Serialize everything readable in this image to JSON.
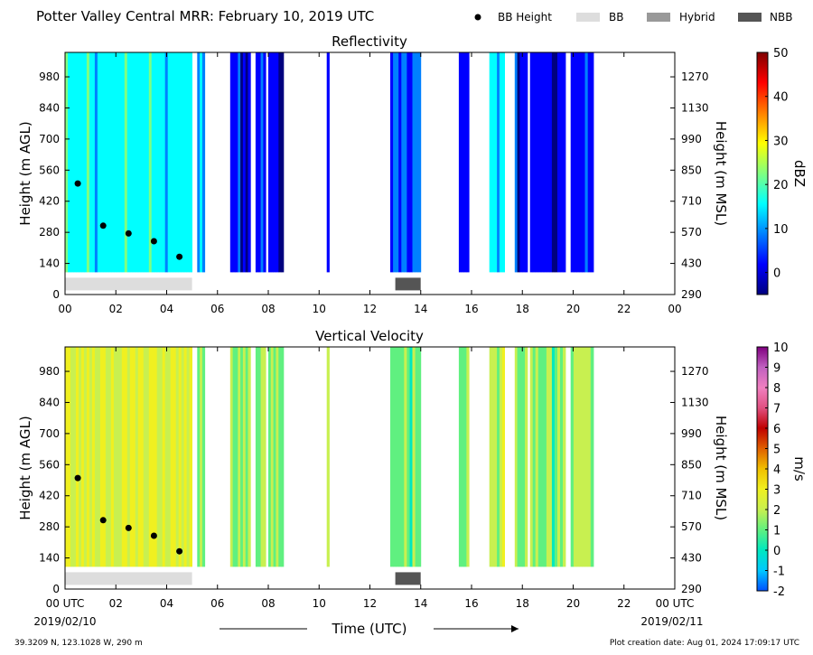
{
  "header": {
    "title": "Potter Valley Central MRR:  February 10, 2019 UTC",
    "legend": [
      {
        "label": "BB Height",
        "kind": "marker",
        "color": "#000000"
      },
      {
        "label": "BB",
        "kind": "box",
        "color": "#dddddd"
      },
      {
        "label": "Hybrid",
        "kind": "box",
        "color": "#999999"
      },
      {
        "label": "NBB",
        "kind": "box",
        "color": "#555555"
      }
    ]
  },
  "footer": {
    "location": "39.3209 N, 123.1028 W, 290 m",
    "created": "Plot creation date: Aug 01, 2024 17:09:17 UTC",
    "xlabel": "Time (UTC)",
    "start_date": "2019/02/10",
    "end_date": "2019/02/11"
  },
  "chart_data": [
    {
      "type": "heatmap",
      "title": "Reflectivity",
      "ylabel": "Height (m AGL)",
      "y2label": "Height (m MSL)",
      "x_ticks": [
        "00",
        "02",
        "04",
        "06",
        "08",
        "10",
        "12",
        "14",
        "16",
        "18",
        "20",
        "22",
        "00"
      ],
      "xlim": [
        0,
        24
      ],
      "ylim": [
        0,
        1090
      ],
      "y_ticks": [
        0,
        140,
        280,
        420,
        560,
        700,
        840,
        980
      ],
      "y2_ticks": [
        290,
        430,
        570,
        710,
        850,
        990,
        1130,
        1270
      ],
      "colorbar": {
        "label": "dBZ",
        "range": [
          -5,
          50
        ],
        "ticks": [
          0,
          10,
          20,
          30,
          40,
          50
        ],
        "colors": [
          "#00007f",
          "#0000ff",
          "#0080ff",
          "#00ffff",
          "#80ff80",
          "#ffff00",
          "#ff8000",
          "#ff0000",
          "#7f0000"
        ]
      },
      "bb_height": [
        {
          "x": 0.5,
          "y": 500
        },
        {
          "x": 1.5,
          "y": 310
        },
        {
          "x": 2.5,
          "y": 275
        },
        {
          "x": 3.5,
          "y": 240
        },
        {
          "x": 4.5,
          "y": 170
        }
      ],
      "bb_type": [
        {
          "start": 0.0,
          "end": 5.0,
          "type": "BB"
        },
        {
          "start": 13.0,
          "end": 14.0,
          "type": "NBB"
        }
      ],
      "echo_segments": [
        {
          "start": 0.0,
          "end": 5.0,
          "level": 16
        },
        {
          "start": 5.2,
          "end": 5.5,
          "level": 12
        },
        {
          "start": 6.5,
          "end": 7.3,
          "level": 2
        },
        {
          "start": 7.5,
          "end": 7.9,
          "level": 4
        },
        {
          "start": 8.0,
          "end": 8.6,
          "level": 0
        },
        {
          "start": 10.3,
          "end": 10.4,
          "level": 0
        },
        {
          "start": 12.8,
          "end": 14.0,
          "level": 6
        },
        {
          "start": 15.5,
          "end": 15.9,
          "level": 2
        },
        {
          "start": 16.7,
          "end": 17.3,
          "level": 14
        },
        {
          "start": 17.7,
          "end": 18.2,
          "level": 2
        },
        {
          "start": 18.3,
          "end": 19.7,
          "level": 0
        },
        {
          "start": 19.9,
          "end": 20.8,
          "level": 2
        }
      ]
    },
    {
      "type": "heatmap",
      "title": "Vertical Velocity",
      "ylabel": "Height (m AGL)",
      "y2label": "Height (m MSL)",
      "x_ticks": [
        "00 UTC",
        "02",
        "04",
        "06",
        "08",
        "10",
        "12",
        "14",
        "16",
        "18",
        "20",
        "22",
        "00 UTC"
      ],
      "xlim": [
        0,
        24
      ],
      "ylim": [
        0,
        1090
      ],
      "y_ticks": [
        0,
        140,
        280,
        420,
        560,
        700,
        840,
        980
      ],
      "y2_ticks": [
        290,
        430,
        570,
        710,
        850,
        990,
        1130,
        1270
      ],
      "colorbar": {
        "label": "m/s",
        "range": [
          -2,
          10
        ],
        "ticks": [
          -2,
          -1,
          0,
          1,
          2,
          3,
          4,
          5,
          6,
          7,
          8,
          9,
          10
        ],
        "colors": [
          "#0050ff",
          "#00c8ff",
          "#00e8c0",
          "#60f080",
          "#c8f050",
          "#f0f020",
          "#f0c000",
          "#e06000",
          "#c00000",
          "#e05080",
          "#f080c0",
          "#c060c0",
          "#800080"
        ]
      },
      "bb_height": [
        {
          "x": 0.5,
          "y": 500
        },
        {
          "x": 1.5,
          "y": 310
        },
        {
          "x": 2.5,
          "y": 275
        },
        {
          "x": 3.5,
          "y": 240
        },
        {
          "x": 4.5,
          "y": 170
        }
      ],
      "bb_type": [
        {
          "start": 0.0,
          "end": 5.0,
          "type": "BB"
        },
        {
          "start": 13.0,
          "end": 14.0,
          "type": "NBB"
        }
      ],
      "echo_segments": [
        {
          "start": 0.0,
          "end": 5.0,
          "level": 2.5
        },
        {
          "start": 5.2,
          "end": 5.5,
          "level": 1.5
        },
        {
          "start": 6.5,
          "end": 7.3,
          "level": 1.5
        },
        {
          "start": 7.5,
          "end": 7.9,
          "level": 1.5
        },
        {
          "start": 8.0,
          "end": 8.6,
          "level": 1.2
        },
        {
          "start": 10.3,
          "end": 10.4,
          "level": 1.5
        },
        {
          "start": 12.8,
          "end": 14.0,
          "level": 1.3
        },
        {
          "start": 15.5,
          "end": 15.9,
          "level": 1.3
        },
        {
          "start": 16.7,
          "end": 17.3,
          "level": 1.6
        },
        {
          "start": 17.7,
          "end": 18.2,
          "level": 1.5
        },
        {
          "start": 18.3,
          "end": 19.7,
          "level": 1.0
        },
        {
          "start": 19.9,
          "end": 20.8,
          "level": 1.3
        }
      ]
    }
  ]
}
